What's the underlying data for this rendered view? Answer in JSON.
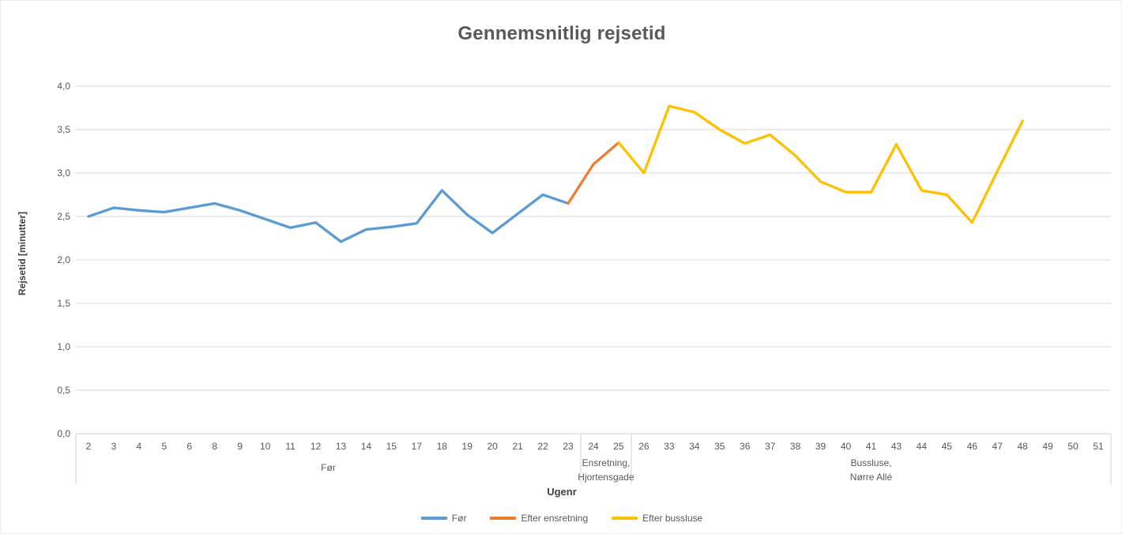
{
  "colors": {
    "before": "#5B9BD5",
    "after_oneway": "#ED7D31",
    "after_busgate": "#FFC000",
    "gridline": "#D9D9D9",
    "axis_line": "#D0D0D0",
    "text": "#595959"
  },
  "chart_data": {
    "type": "line",
    "title": "Gennemsnitlig rejsetid",
    "xlabel": "Ugenr",
    "ylabel": "Rejsetid [minutter]",
    "ylim": [
      0,
      4
    ],
    "y_tick_step": 0.5,
    "y_tick_labels": [
      "0,0",
      "0,5",
      "1,0",
      "1,5",
      "2,0",
      "2,5",
      "3,0",
      "3,5",
      "4,0"
    ],
    "grid": true,
    "legend_position": "bottom",
    "categories": [
      "2",
      "3",
      "4",
      "5",
      "6",
      "8",
      "9",
      "10",
      "11",
      "12",
      "13",
      "14",
      "15",
      "17",
      "18",
      "19",
      "20",
      "21",
      "22",
      "23",
      "24",
      "25",
      "26",
      "33",
      "34",
      "35",
      "36",
      "37",
      "38",
      "39",
      "40",
      "41",
      "43",
      "44",
      "45",
      "46",
      "47",
      "48",
      "49",
      "50",
      "51"
    ],
    "category_groups": [
      {
        "lines": [
          "Før"
        ],
        "from": "2",
        "to": "23"
      },
      {
        "lines": [
          "Ensretning,",
          "Hjortensgade"
        ],
        "from": "24",
        "to": "25"
      },
      {
        "lines": [
          "Bussluse,",
          "Nørre Allé"
        ],
        "from": "26",
        "to": "51"
      }
    ],
    "series": [
      {
        "name": "Før",
        "color_key": "before",
        "weeks": [
          2,
          3,
          4,
          5,
          6,
          8,
          9,
          10,
          11,
          12,
          13,
          14,
          15,
          17,
          18,
          19,
          20,
          21,
          22,
          23
        ],
        "values": [
          2.5,
          2.6,
          2.57,
          2.55,
          2.6,
          2.65,
          2.57,
          2.47,
          2.37,
          2.43,
          2.21,
          2.35,
          2.38,
          2.42,
          2.8,
          2.52,
          2.31,
          2.53,
          2.75,
          2.65
        ]
      },
      {
        "name": "Efter ensretning",
        "color_key": "after_oneway",
        "weeks": [
          23,
          24,
          25
        ],
        "values": [
          2.65,
          3.1,
          3.35
        ]
      },
      {
        "name": "Efter bussluse",
        "color_key": "after_busgate",
        "weeks": [
          25,
          26,
          33,
          34,
          35,
          36,
          37,
          38,
          39,
          40,
          41,
          43,
          44,
          45,
          46,
          47,
          48
        ],
        "values": [
          3.35,
          3.0,
          3.77,
          3.7,
          3.5,
          3.34,
          3.44,
          3.2,
          2.9,
          2.78,
          2.78,
          3.33,
          2.8,
          2.75,
          2.43,
          3.02,
          3.6
        ]
      }
    ]
  }
}
